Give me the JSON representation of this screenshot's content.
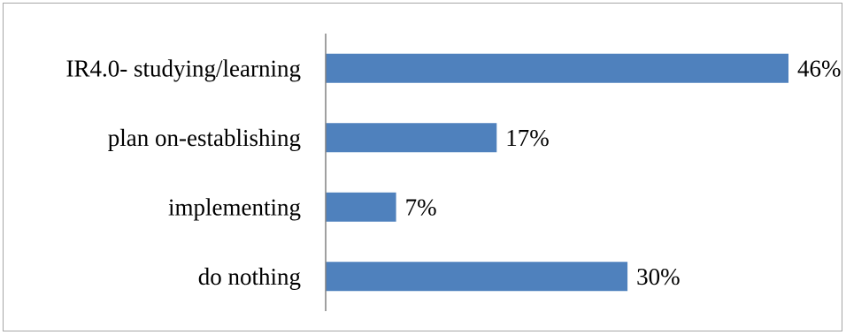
{
  "chart_data": {
    "type": "bar",
    "orientation": "horizontal",
    "categories": [
      "IR4.0- studying/learning",
      "plan on-establishing",
      "implementing",
      "do nothing"
    ],
    "values": [
      46,
      17,
      7,
      30
    ],
    "value_labels": [
      "46%",
      "17%",
      "7%",
      "30%"
    ],
    "unit": "%",
    "title": "",
    "xlabel": "",
    "ylabel": "",
    "xlim": [
      0,
      46
    ],
    "grid": false,
    "legend": "none",
    "colors": {
      "bar": "#4f81bd",
      "axis": "#808080",
      "frame": "#a6a6a6",
      "text": "#000000"
    }
  }
}
